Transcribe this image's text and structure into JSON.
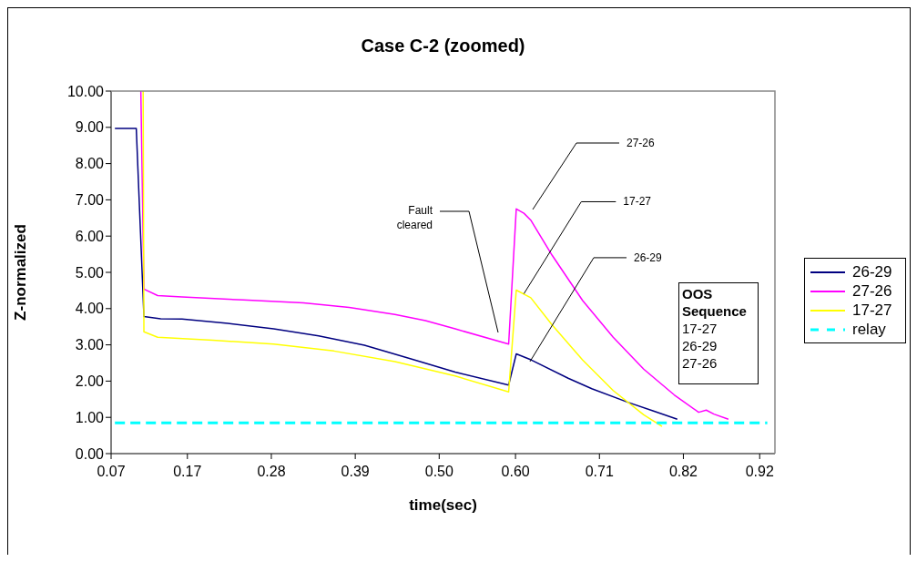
{
  "chart_data": {
    "type": "line",
    "title": "Case C-2 (zoomed)",
    "xlabel": "time(sec)",
    "ylabel": "Z-normalized",
    "xlim": [
      0.07,
      0.94
    ],
    "ylim": [
      0,
      10
    ],
    "xticks": [
      {
        "value": 0.07,
        "label": "0.07"
      },
      {
        "value": 0.17,
        "label": "0.17"
      },
      {
        "value": 0.28,
        "label": "0.28"
      },
      {
        "value": 0.39,
        "label": "0.39"
      },
      {
        "value": 0.5,
        "label": "0.50"
      },
      {
        "value": 0.6,
        "label": "0.60"
      },
      {
        "value": 0.71,
        "label": "0.71"
      },
      {
        "value": 0.82,
        "label": "0.82"
      },
      {
        "value": 0.92,
        "label": "0.92"
      }
    ],
    "yticks": [
      {
        "value": 0,
        "label": "0.00"
      },
      {
        "value": 1,
        "label": "1.00"
      },
      {
        "value": 2,
        "label": "2.00"
      },
      {
        "value": 3,
        "label": "3.00"
      },
      {
        "value": 4,
        "label": "4.00"
      },
      {
        "value": 5,
        "label": "5.00"
      },
      {
        "value": 6,
        "label": "6.00"
      },
      {
        "value": 7,
        "label": "7.00"
      },
      {
        "value": 8,
        "label": "8.00"
      },
      {
        "value": 9,
        "label": "9.00"
      },
      {
        "value": 10,
        "label": "10.00"
      }
    ],
    "grid": false,
    "legend": "right",
    "marker": "none",
    "line_style": "solid",
    "series": [
      {
        "name": "26-29",
        "color": "#000080",
        "x": [
          0.075,
          0.103,
          0.113,
          0.135,
          0.163,
          0.223,
          0.283,
          0.342,
          0.402,
          0.462,
          0.521,
          0.591,
          0.601,
          0.621,
          0.669,
          0.7,
          0.748,
          0.78,
          0.812
        ],
        "values": [
          8.97,
          8.97,
          3.78,
          3.72,
          3.71,
          3.59,
          3.44,
          3.25,
          2.99,
          2.62,
          2.25,
          1.89,
          2.75,
          2.58,
          2.08,
          1.79,
          1.41,
          1.18,
          0.95
        ]
      },
      {
        "name": "27-26",
        "color": "#ff00ff",
        "x": [
          0.109,
          0.113,
          0.131,
          0.163,
          0.243,
          0.322,
          0.382,
          0.442,
          0.482,
          0.521,
          0.591,
          0.601,
          0.611,
          0.62,
          0.648,
          0.688,
          0.728,
          0.768,
          0.808,
          0.84,
          0.85,
          0.86,
          0.879
        ],
        "values": [
          10,
          4.54,
          4.36,
          4.32,
          4.24,
          4.16,
          4.03,
          3.84,
          3.67,
          3.44,
          3.02,
          6.75,
          6.63,
          6.44,
          5.47,
          4.22,
          3.21,
          2.33,
          1.62,
          1.14,
          1.2,
          1.09,
          0.95
        ]
      },
      {
        "name": "17-27",
        "color": "#ffff00",
        "x": [
          0.112,
          0.113,
          0.131,
          0.203,
          0.283,
          0.362,
          0.442,
          0.521,
          0.591,
          0.601,
          0.62,
          0.648,
          0.688,
          0.728,
          0.768,
          0.792
        ],
        "values": [
          10,
          3.36,
          3.21,
          3.13,
          3.02,
          2.83,
          2.54,
          2.14,
          1.7,
          4.51,
          4.3,
          3.55,
          2.58,
          1.74,
          1.07,
          0.75
        ]
      },
      {
        "name": "relay",
        "color": "#00ffff",
        "line_style": "dashed",
        "x": [
          0.075,
          0.93
        ],
        "values": [
          0.85,
          0.85
        ]
      }
    ],
    "annotations": [
      "Fault cleared",
      "27-26",
      {
        "text": "17-27",
        "x": 0.611,
        "y": 4.41
      },
      {
        "text": "26-29",
        "x": 0.619,
        "y": 2.54
      },
      "OOS Sequence\n17-27\n26-29\n27-26"
    ]
  }
}
